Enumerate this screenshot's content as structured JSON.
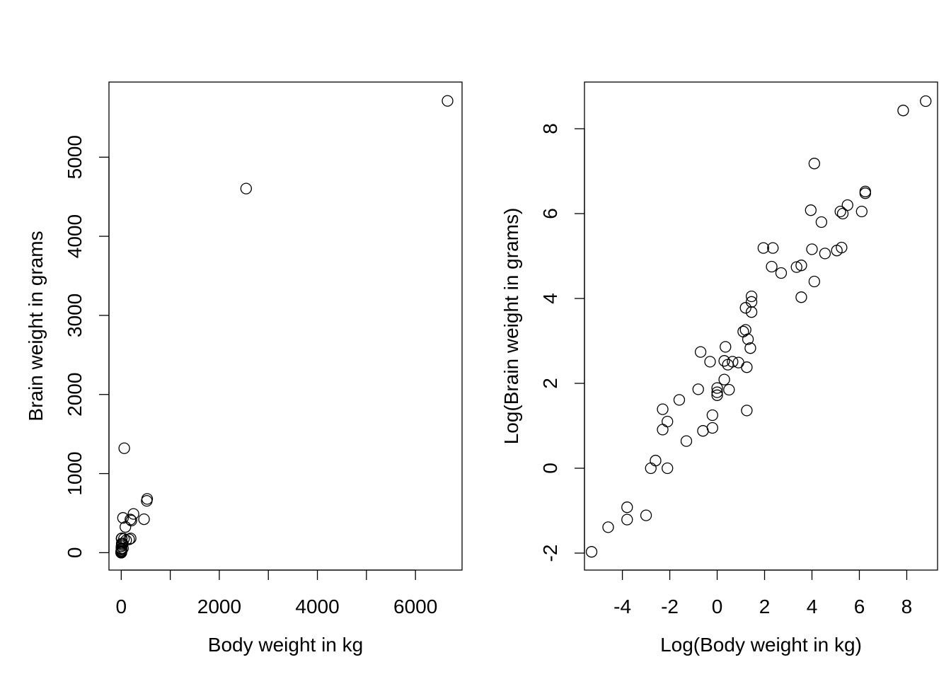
{
  "chart_data": [
    {
      "type": "scatter",
      "xlabel": "Body weight in kg",
      "ylabel": "Brain weight in grams",
      "xlim": [
        -250,
        6950
      ],
      "ylim": [
        -220,
        5950
      ],
      "xticks": [
        0,
        1000,
        2000,
        3000,
        4000,
        5000,
        6000
      ],
      "xtick_labels": [
        "0",
        "",
        "2000",
        "",
        "4000",
        "",
        "6000"
      ],
      "yticks": [
        0,
        1000,
        2000,
        3000,
        4000,
        5000
      ],
      "ytick_labels": [
        "0",
        "1000",
        "2000",
        "3000",
        "4000",
        "5000"
      ],
      "grid": false,
      "points": [
        [
          6654,
          5712
        ],
        [
          2547,
          4603
        ],
        [
          62,
          1320
        ],
        [
          521,
          655
        ],
        [
          529,
          680
        ],
        [
          465,
          423
        ],
        [
          207,
          406
        ],
        [
          187,
          419
        ],
        [
          250,
          490
        ],
        [
          36,
          440
        ],
        [
          100,
          157
        ],
        [
          192,
          180
        ],
        [
          160,
          169
        ],
        [
          85,
          325
        ],
        [
          55,
          175
        ],
        [
          27.7,
          115
        ],
        [
          10.5,
          179.5
        ],
        [
          6.8,
          179
        ],
        [
          3.5,
          10.8
        ],
        [
          10,
          115
        ],
        [
          4.2,
          50.4
        ],
        [
          4.3,
          39.2
        ],
        [
          3.4,
          12.3
        ],
        [
          6,
          81
        ],
        [
          2.5,
          12.1
        ],
        [
          3.3,
          25.6
        ],
        [
          1.4,
          12.5
        ],
        [
          4.2,
          56
        ],
        [
          4.1,
          24
        ],
        [
          35,
          56
        ],
        [
          14.8,
          98.2
        ],
        [
          4,
          11.4
        ],
        [
          1,
          6.6
        ],
        [
          1.6,
          11.4
        ],
        [
          0.9,
          2.6
        ],
        [
          0.75,
          5.5
        ],
        [
          0.55,
          2.4
        ],
        [
          0.2,
          5
        ],
        [
          0.1,
          4
        ],
        [
          0.05,
          0.3
        ],
        [
          0.01,
          0.25
        ],
        [
          0.06,
          1
        ],
        [
          0.02,
          0.33
        ],
        [
          0.1,
          2.5
        ],
        [
          0.28,
          1.9
        ],
        [
          0.11,
          1.3
        ],
        [
          0.12,
          3.3
        ],
        [
          0.5,
          15.5
        ],
        [
          0.05,
          0.14
        ],
        [
          0.02,
          0.4
        ],
        [
          1.4,
          12.5
        ],
        [
          10.5,
          179.5
        ]
      ]
    },
    {
      "type": "scatter",
      "xlabel": "Log(Body weight in kg)",
      "ylabel": "Log(Brain weight in grams)",
      "xlim": [
        -5.6,
        9.3
      ],
      "ylim": [
        -2.4,
        9.1
      ],
      "xticks": [
        -4,
        -2,
        0,
        2,
        4,
        6,
        8
      ],
      "xtick_labels": [
        "-4",
        "-2",
        "0",
        "2",
        "4",
        "6",
        "8"
      ],
      "yticks": [
        -2,
        0,
        2,
        4,
        6,
        8
      ],
      "ytick_labels": [
        "-2",
        "0",
        "2",
        "4",
        "6",
        "8"
      ],
      "grid": false,
      "points": [
        [
          -5.3,
          -1.97
        ],
        [
          -4.6,
          -1.39
        ],
        [
          -3.8,
          -1.21
        ],
        [
          -3.8,
          -0.92
        ],
        [
          -3.0,
          -1.11
        ],
        [
          -2.8,
          0.0
        ],
        [
          -2.6,
          0.18
        ],
        [
          -2.1,
          0.0
        ],
        [
          -2.3,
          0.91
        ],
        [
          -2.1,
          1.1
        ],
        [
          -2.3,
          1.39
        ],
        [
          -1.6,
          1.61
        ],
        [
          -1.3,
          0.64
        ],
        [
          -0.6,
          0.88
        ],
        [
          -0.2,
          0.95
        ],
        [
          -0.2,
          1.25
        ],
        [
          -0.8,
          1.86
        ],
        [
          0.0,
          1.72
        ],
        [
          0.0,
          1.79
        ],
        [
          0.0,
          1.89
        ],
        [
          0.3,
          2.09
        ],
        [
          0.5,
          1.85
        ],
        [
          -0.3,
          2.51
        ],
        [
          -0.7,
          2.74
        ],
        [
          0.3,
          2.53
        ],
        [
          0.35,
          2.86
        ],
        [
          0.45,
          2.44
        ],
        [
          0.65,
          2.51
        ],
        [
          0.9,
          2.49
        ],
        [
          1.25,
          1.36
        ],
        [
          1.25,
          2.38
        ],
        [
          1.1,
          3.22
        ],
        [
          1.2,
          3.26
        ],
        [
          1.3,
          3.04
        ],
        [
          1.4,
          2.83
        ],
        [
          1.2,
          3.78
        ],
        [
          1.45,
          3.92
        ],
        [
          1.45,
          4.05
        ],
        [
          1.45,
          3.68
        ],
        [
          1.95,
          5.19
        ],
        [
          2.35,
          5.19
        ],
        [
          2.3,
          4.75
        ],
        [
          2.7,
          4.6
        ],
        [
          3.35,
          4.74
        ],
        [
          3.55,
          4.78
        ],
        [
          3.55,
          4.03
        ],
        [
          3.95,
          6.08
        ],
        [
          4.0,
          5.16
        ],
        [
          4.1,
          4.4
        ],
        [
          4.1,
          7.18
        ],
        [
          4.4,
          5.8
        ],
        [
          4.55,
          5.06
        ],
        [
          5.05,
          5.13
        ],
        [
          5.2,
          6.05
        ],
        [
          5.25,
          5.2
        ],
        [
          5.3,
          6.0
        ],
        [
          5.5,
          6.2
        ],
        [
          6.1,
          6.05
        ],
        [
          6.25,
          6.48
        ],
        [
          6.25,
          6.52
        ],
        [
          7.85,
          8.43
        ],
        [
          8.8,
          8.65
        ]
      ]
    }
  ]
}
